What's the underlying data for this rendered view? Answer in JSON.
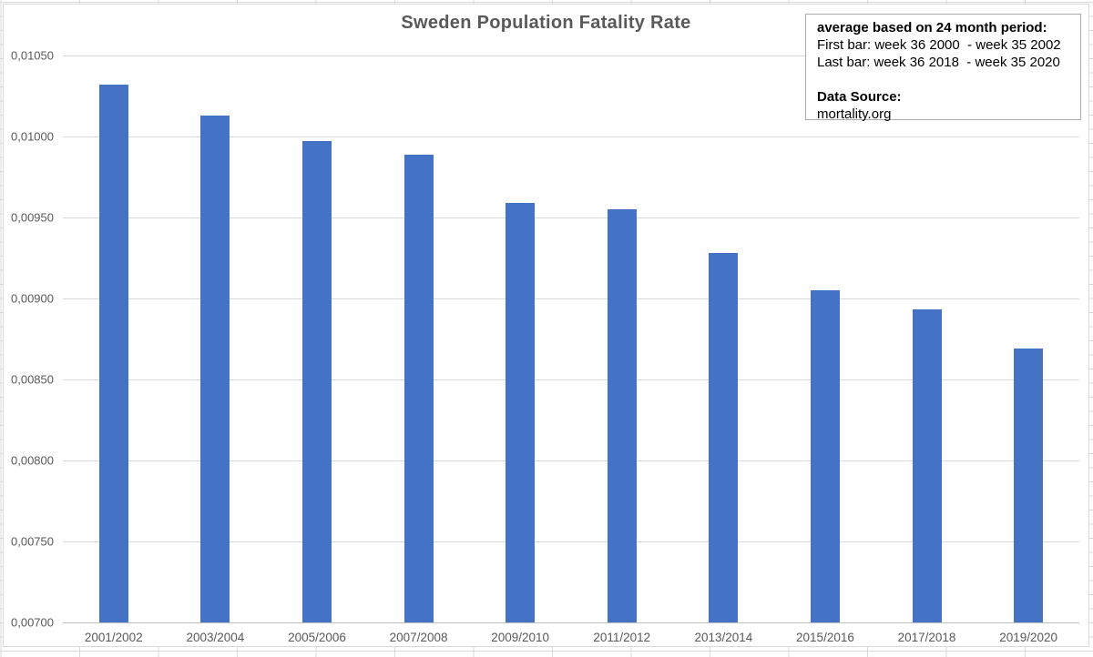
{
  "annotation": {
    "heading": "average based on 24 month period:",
    "first_bar": "First bar: week 36 2000  - week 35 2002",
    "last_bar": "Last bar: week 36 2018  - week 35 2020",
    "source_label": "Data Source:",
    "source_value": "mortality.org"
  },
  "colors": {
    "bar": "#4472C4",
    "gridline": "#D9D9D9",
    "axis_line": "#BFBFBF",
    "axis_text": "#595959",
    "title_text": "#595959",
    "annotation_border": "#ABABAB",
    "sheet_gridline": "#D9D9D9"
  },
  "chart_data": {
    "type": "bar",
    "title": "Sweden Population Fatality Rate",
    "categories": [
      "2001/2002",
      "2003/2004",
      "2005/2006",
      "2007/2008",
      "2009/2010",
      "2011/2012",
      "2013/2014",
      "2015/2016",
      "2017/2018",
      "2019/2020"
    ],
    "values": [
      0.01032,
      0.01013,
      0.00997,
      0.00989,
      0.00959,
      0.00955,
      0.00928,
      0.00905,
      0.00893,
      0.00869
    ],
    "xlabel": "",
    "ylabel": "",
    "ylim": [
      0.007,
      0.0105
    ],
    "ytick_step": 0.0005,
    "ytick_labels": [
      "0,01050",
      "0,01000",
      "0,00950",
      "0,00900",
      "0,00850",
      "0,00800",
      "0,00750",
      "0,00700"
    ],
    "decimal_separator": ",",
    "gridlines": true,
    "legend": "none",
    "bar_color": "#4472C4"
  }
}
